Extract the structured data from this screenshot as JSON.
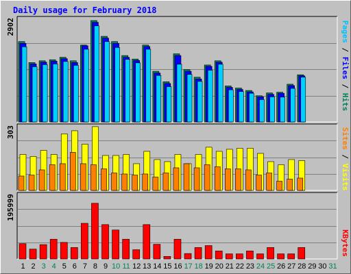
{
  "title": "Daily usage for February 2018",
  "chart_data": [
    {
      "type": "bar",
      "name": "hits-files-pages",
      "max_label": "2902",
      "ylim": [
        0,
        2902
      ],
      "categories": [
        "1",
        "2",
        "3",
        "4",
        "5",
        "6",
        "7",
        "8",
        "9",
        "10",
        "11",
        "12",
        "13",
        "14",
        "15",
        "16",
        "17",
        "18",
        "19",
        "20",
        "21",
        "22",
        "23",
        "24",
        "25",
        "26",
        "27",
        "28",
        "29",
        "30",
        "31"
      ],
      "series": [
        {
          "name": "Hits",
          "color": "#00805c",
          "values": [
            2300,
            1700,
            1750,
            1780,
            1850,
            1750,
            2200,
            2902,
            2450,
            2300,
            1900,
            1800,
            2200,
            1450,
            1150,
            1950,
            1500,
            1280,
            1630,
            1750,
            1030,
            970,
            900,
            750,
            830,
            850,
            1080,
            1350,
            null,
            null,
            null
          ]
        },
        {
          "name": "Files",
          "color": "#0000ff",
          "values": [
            2250,
            1660,
            1710,
            1740,
            1810,
            1700,
            2180,
            2850,
            2400,
            2250,
            1850,
            1760,
            2160,
            1400,
            1100,
            1900,
            1450,
            1230,
            1590,
            1710,
            990,
            930,
            860,
            720,
            790,
            820,
            1040,
            1320,
            null,
            null,
            null
          ]
        },
        {
          "name": "Pages",
          "color": "#00d0ff",
          "values": [
            2150,
            1580,
            1640,
            1660,
            1730,
            1620,
            2080,
            2750,
            2300,
            2130,
            1790,
            1690,
            2080,
            1330,
            1010,
            1650,
            1360,
            1160,
            1480,
            1650,
            920,
            870,
            820,
            640,
            720,
            710,
            960,
            1280,
            null,
            null,
            null
          ]
        }
      ]
    },
    {
      "type": "bar",
      "name": "visits-sites",
      "max_label": "303",
      "ylim": [
        0,
        303
      ],
      "categories": [
        "1",
        "2",
        "3",
        "4",
        "5",
        "6",
        "7",
        "8",
        "9",
        "10",
        "11",
        "12",
        "13",
        "14",
        "15",
        "16",
        "17",
        "18",
        "19",
        "20",
        "21",
        "22",
        "23",
        "24",
        "25",
        "26",
        "27",
        "28",
        "29",
        "30",
        "31"
      ],
      "series": [
        {
          "name": "Visits",
          "color": "#ffff00",
          "values": [
            175,
            165,
            195,
            175,
            275,
            290,
            225,
            310,
            170,
            170,
            175,
            130,
            190,
            150,
            140,
            175,
            130,
            175,
            210,
            190,
            200,
            205,
            205,
            180,
            140,
            125,
            150,
            145,
            null,
            null,
            null
          ]
        },
        {
          "name": "Sites",
          "color": "#ff8000",
          "values": [
            70,
            75,
            100,
            125,
            130,
            185,
            130,
            125,
            105,
            85,
            80,
            75,
            80,
            65,
            85,
            110,
            130,
            110,
            125,
            115,
            105,
            105,
            100,
            75,
            85,
            45,
            55,
            60,
            null,
            null,
            null
          ]
        }
      ]
    },
    {
      "type": "bar",
      "name": "kbytes",
      "max_label": "195999",
      "ylim": [
        0,
        195999
      ],
      "categories": [
        "1",
        "2",
        "3",
        "4",
        "5",
        "6",
        "7",
        "8",
        "9",
        "10",
        "11",
        "12",
        "13",
        "14",
        "15",
        "16",
        "17",
        "18",
        "19",
        "20",
        "21",
        "22",
        "23",
        "24",
        "25",
        "26",
        "27",
        "28",
        "29",
        "30",
        "31"
      ],
      "series": [
        {
          "name": "KBytes",
          "color": "#ff0000",
          "values": [
            48000,
            31000,
            45000,
            62000,
            52000,
            36000,
            112000,
            175000,
            108000,
            91000,
            62000,
            29000,
            108000,
            46000,
            8000,
            62000,
            17000,
            36000,
            42000,
            25000,
            16000,
            16000,
            25000,
            16000,
            36000,
            16000,
            16000,
            36000,
            null,
            null,
            null
          ]
        }
      ]
    }
  ],
  "legend": {
    "top": [
      {
        "text": "Pages",
        "color": "#00c0ff"
      },
      {
        "text": " / ",
        "color": "#000000"
      },
      {
        "text": "Files",
        "color": "#0000ff"
      },
      {
        "text": " / ",
        "color": "#000000"
      },
      {
        "text": "Hits",
        "color": "#00805c"
      }
    ],
    "middle": [
      {
        "text": "Sites",
        "color": "#ff8000"
      },
      {
        "text": " / ",
        "color": "#000000"
      },
      {
        "text": "Visits",
        "color": "#ffff00"
      }
    ],
    "bottom": [
      {
        "text": "KBytes",
        "color": "#ff0000"
      }
    ]
  },
  "x_tick_colors": {
    "weekday": "#000000",
    "weekend": "#00805c",
    "weekend_days": [
      3,
      4,
      10,
      11,
      17,
      18,
      24,
      25,
      31
    ]
  }
}
